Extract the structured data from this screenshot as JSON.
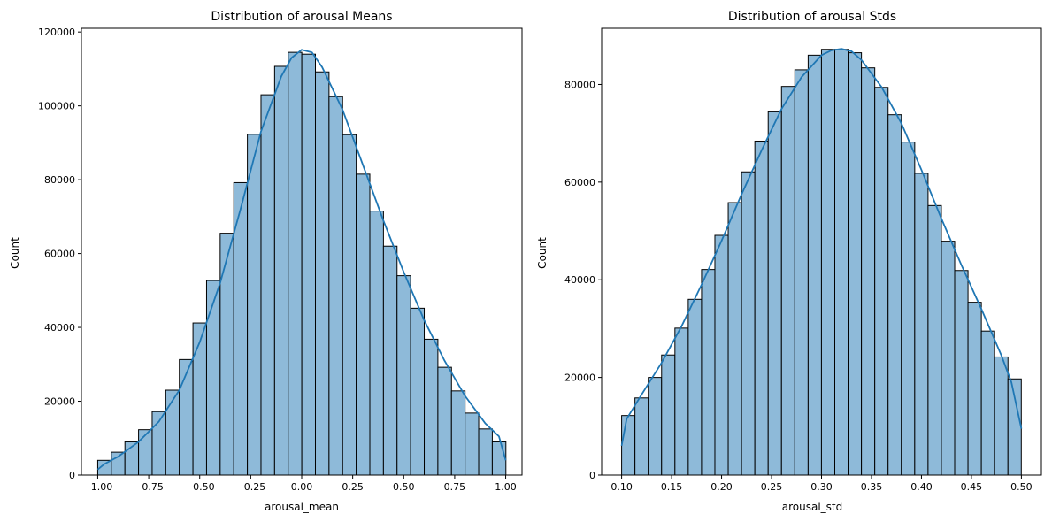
{
  "chart_data": [
    {
      "type": "bar",
      "subtype": "histogram_with_kde",
      "title": "Distribution of arousal Means",
      "xlabel": "arousal_mean",
      "ylabel": "Count",
      "xlim": [
        -1.08,
        1.08
      ],
      "ylim": [
        0,
        121000
      ],
      "bin_start": -1.0,
      "bin_width": 0.0667,
      "counts": [
        4000,
        6200,
        9000,
        12300,
        17200,
        23000,
        31300,
        41200,
        52700,
        65500,
        79200,
        92300,
        103000,
        110700,
        114500,
        114000,
        109200,
        102500,
        92200,
        81500,
        71500,
        62000,
        54000,
        45200,
        36800,
        29200,
        22800,
        16800,
        12500,
        9000
      ],
      "kde": {
        "x": [
          -1.0,
          -0.967,
          -0.9,
          -0.8,
          -0.7,
          -0.6,
          -0.5,
          -0.4,
          -0.3,
          -0.2,
          -0.1,
          -0.05,
          0.0,
          0.05,
          0.1,
          0.2,
          0.3,
          0.4,
          0.5,
          0.6,
          0.7,
          0.8,
          0.9,
          0.967,
          1.0
        ],
        "y": [
          1500,
          3000,
          5000,
          9000,
          14500,
          23000,
          36000,
          52000,
          72000,
          93000,
          108000,
          113000,
          115200,
          114500,
          110500,
          99000,
          84000,
          69000,
          55000,
          42000,
          31000,
          21500,
          14000,
          10500,
          4000
        ]
      },
      "xticks": [
        "−1.00",
        "−0.75",
        "−0.50",
        "−0.25",
        "0.00",
        "0.25",
        "0.50",
        "0.75",
        "1.00"
      ],
      "xtick_values": [
        -1.0,
        -0.75,
        -0.5,
        -0.25,
        0.0,
        0.25,
        0.5,
        0.75,
        1.0
      ],
      "yticks": [
        "0",
        "20000",
        "40000",
        "60000",
        "80000",
        "100000",
        "120000"
      ],
      "ytick_values": [
        0,
        20000,
        40000,
        60000,
        80000,
        100000,
        120000
      ],
      "bar_color": "#8ebad9",
      "line_color": "#1f77b4",
      "grid": false
    },
    {
      "type": "bar",
      "subtype": "histogram_with_kde",
      "title": "Distribution of arousal Stds",
      "xlabel": "arousal_std",
      "ylabel": "Count",
      "xlim": [
        0.08,
        0.52
      ],
      "ylim": [
        0,
        91500
      ],
      "bin_start": 0.1,
      "bin_width": 0.01333,
      "counts": [
        12200,
        15800,
        20000,
        24600,
        30100,
        36000,
        42100,
        49100,
        55800,
        62100,
        68400,
        74400,
        79600,
        83000,
        86000,
        87200,
        87200,
        86500,
        83400,
        79400,
        73800,
        68200,
        61800,
        55200,
        47900,
        41900,
        35400,
        29500,
        24200,
        19700
      ],
      "kde": {
        "x": [
          0.1,
          0.105,
          0.12,
          0.14,
          0.16,
          0.18,
          0.2,
          0.22,
          0.24,
          0.26,
          0.28,
          0.3,
          0.31,
          0.32,
          0.33,
          0.34,
          0.36,
          0.38,
          0.4,
          0.42,
          0.44,
          0.46,
          0.48,
          0.49,
          0.5
        ],
        "y": [
          6000,
          11500,
          16500,
          23000,
          30500,
          39000,
          48000,
          57500,
          66500,
          75000,
          81500,
          86000,
          87000,
          87300,
          86800,
          85000,
          79500,
          72000,
          62500,
          52500,
          43000,
          34000,
          24500,
          19000,
          9500
        ]
      },
      "xticks": [
        "0.10",
        "0.15",
        "0.20",
        "0.25",
        "0.30",
        "0.35",
        "0.40",
        "0.45",
        "0.50"
      ],
      "xtick_values": [
        0.1,
        0.15,
        0.2,
        0.25,
        0.3,
        0.35,
        0.4,
        0.45,
        0.5
      ],
      "yticks": [
        "0",
        "20000",
        "40000",
        "60000",
        "80000"
      ],
      "ytick_values": [
        0,
        20000,
        40000,
        60000,
        80000
      ],
      "bar_color": "#8ebad9",
      "line_color": "#1f77b4",
      "grid": false
    }
  ]
}
